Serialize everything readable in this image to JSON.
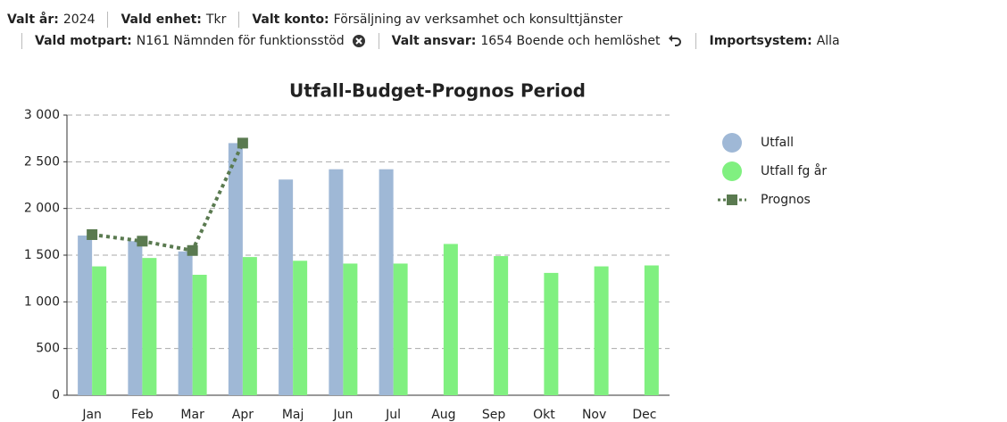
{
  "filters": [
    {
      "label": "Valt år:",
      "value": "2024"
    },
    {
      "label": "Vald enhet:",
      "value": "Tkr"
    },
    {
      "label": "Valt konto:",
      "value": "Försäljning av verksamhet och konsulttjänster"
    },
    {
      "label": "Vald motpart:",
      "value": "N161 Nämnden för funktionsstöd"
    },
    {
      "label": "Valt ansvar:",
      "value": "1654 Boende och hemlöshet"
    },
    {
      "label": "Importsystem:",
      "value": "Alla"
    }
  ],
  "chart_data": {
    "type": "bar",
    "title": "Utfall-Budget-Prognos Period",
    "categories": [
      "Jan",
      "Feb",
      "Mar",
      "Apr",
      "Maj",
      "Jun",
      "Jul",
      "Aug",
      "Sep",
      "Okt",
      "Nov",
      "Dec"
    ],
    "series": [
      {
        "name": "Utfall",
        "color": "#9fb8d6",
        "type": "bar",
        "values": [
          1710,
          1650,
          1540,
          2700,
          2310,
          2420,
          2420,
          null,
          null,
          null,
          null,
          null
        ]
      },
      {
        "name": "Utfall fg år",
        "color": "#80f080",
        "type": "bar",
        "values": [
          1380,
          1470,
          1290,
          1480,
          1440,
          1410,
          1410,
          1620,
          1490,
          1310,
          1380,
          1390
        ]
      },
      {
        "name": "Prognos",
        "color": "#5a7a50",
        "type": "line",
        "values": [
          1720,
          1650,
          1550,
          2700,
          null,
          null,
          null,
          null,
          null,
          null,
          null,
          null
        ]
      }
    ],
    "ylim": [
      0,
      3000
    ],
    "yticks": [
      0,
      500,
      {
        "value": 1000,
        "label": "1 000"
      },
      {
        "value": 1500,
        "label": "1 500"
      },
      {
        "value": 2000,
        "label": "2 000"
      },
      {
        "value": 2500,
        "label": "2 500"
      },
      {
        "value": 3000,
        "label": "3 000"
      }
    ],
    "grid": true,
    "legend": "right"
  }
}
